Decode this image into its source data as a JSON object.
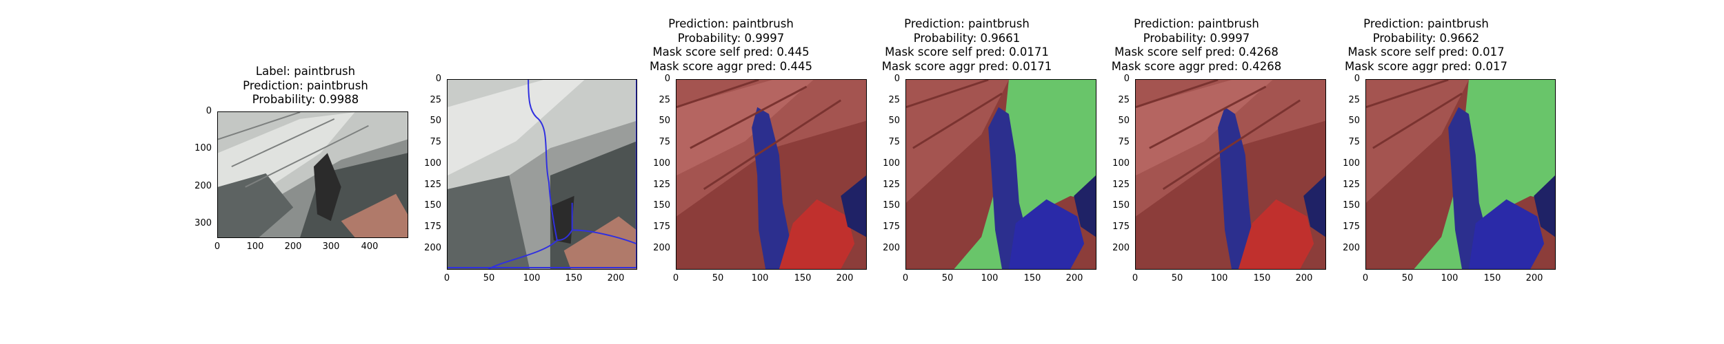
{
  "panels": [
    {
      "id": "p1",
      "title_lines": [
        "Label: paintbrush",
        "Prediction: paintbrush",
        "Probability: 0.9988"
      ],
      "x_ticks": [
        "0",
        "100",
        "200",
        "300",
        "400"
      ],
      "y_ticks": [
        "0",
        "100",
        "200",
        "300"
      ],
      "overlay": "none"
    },
    {
      "id": "p2",
      "title_lines": [],
      "x_ticks": [
        "0",
        "50",
        "100",
        "150",
        "200"
      ],
      "y_ticks": [
        "0",
        "25",
        "50",
        "75",
        "100",
        "125",
        "150",
        "175",
        "200"
      ],
      "overlay": "contour"
    },
    {
      "id": "p3",
      "title_lines": [
        "Prediction: paintbrush",
        "Probability: 0.9997",
        "Mask score self pred: 0.445",
        "Mask score aggr pred: 0.445"
      ],
      "x_ticks": [
        "0",
        "50",
        "100",
        "150",
        "200"
      ],
      "y_ticks": [
        "0",
        "25",
        "50",
        "75",
        "100",
        "125",
        "150",
        "175",
        "200"
      ],
      "overlay": "red-blue"
    },
    {
      "id": "p4",
      "title_lines": [
        "Prediction: paintbrush",
        "Probability: 0.9661",
        "Mask score self pred: 0.0171",
        "Mask score aggr pred: 0.0171"
      ],
      "x_ticks": [
        "0",
        "50",
        "100",
        "150",
        "200"
      ],
      "y_ticks": [
        "0",
        "25",
        "50",
        "75",
        "100",
        "125",
        "150",
        "175",
        "200"
      ],
      "overlay": "red-green-blue"
    },
    {
      "id": "p5",
      "title_lines": [
        "Prediction: paintbrush",
        "Probability: 0.9997",
        "Mask score self pred: 0.4268",
        "Mask score aggr pred: 0.4268"
      ],
      "x_ticks": [
        "0",
        "50",
        "100",
        "150",
        "200"
      ],
      "y_ticks": [
        "0",
        "25",
        "50",
        "75",
        "100",
        "125",
        "150",
        "175",
        "200"
      ],
      "overlay": "red-blue"
    },
    {
      "id": "p6",
      "title_lines": [
        "Prediction: paintbrush",
        "Probability: 0.9662",
        "Mask score self pred: 0.017",
        "Mask score aggr pred: 0.017"
      ],
      "x_ticks": [
        "0",
        "50",
        "100",
        "150",
        "200"
      ],
      "y_ticks": [
        "0",
        "25",
        "50",
        "75",
        "100",
        "125",
        "150",
        "175",
        "200"
      ],
      "overlay": "red-green-blue"
    }
  ],
  "colors": {
    "rock_dark": "#4d5150",
    "rock_light": "#c9ccc9",
    "skin": "#b07a6a",
    "mask_red": "#c0302d",
    "mask_green": "#55d655",
    "mask_blue": "#2a2aa8",
    "contour_blue": "#3030e0"
  }
}
